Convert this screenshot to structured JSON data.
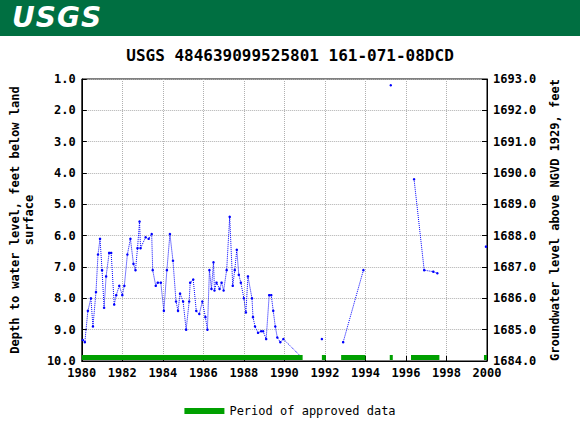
{
  "logo": "USGS",
  "chart_data": {
    "type": "line",
    "title": "USGS 484639099525801 161-071-08DCD",
    "y_label": "Depth to water level, feet below land\nsurface",
    "y2_label": "Groundwater level above NGVD 1929, feet",
    "x": [
      1980.05,
      1980.15,
      1980.3,
      1980.45,
      1980.55,
      1980.7,
      1980.8,
      1980.9,
      1981.0,
      1981.1,
      1981.2,
      1981.35,
      1981.45,
      1981.6,
      1981.7,
      1981.85,
      1982.0,
      1982.1,
      1982.25,
      1982.4,
      1982.55,
      1982.65,
      1982.75,
      1982.85,
      1982.9,
      1983.15,
      1983.3,
      1983.45,
      1983.5,
      1983.65,
      1983.75,
      1983.9,
      1984.05,
      1984.2,
      1984.35,
      1984.5,
      1984.65,
      1984.75,
      1984.85,
      1985.0,
      1985.15,
      1985.3,
      1985.35,
      1985.5,
      1985.65,
      1985.8,
      1985.95,
      1986.1,
      1986.2,
      1986.3,
      1986.4,
      1986.5,
      1986.55,
      1986.65,
      1986.8,
      1986.9,
      1987.0,
      1987.15,
      1987.3,
      1987.45,
      1987.55,
      1987.65,
      1987.75,
      1987.85,
      1988.0,
      1988.1,
      1988.2,
      1988.4,
      1988.45,
      1988.55,
      1988.7,
      1988.85,
      1988.95,
      1989.1,
      1989.25,
      1989.35,
      1989.45,
      1989.55,
      1989.65,
      1989.8,
      1989.95,
      1990.8,
      null,
      1991.85,
      null,
      1992.9,
      1993.9,
      null,
      1995.25,
      null,
      1996.4,
      1996.9,
      1997.35,
      1997.55,
      null,
      1999.95
    ],
    "values": [
      9.33,
      9.4,
      8.4,
      8.0,
      8.9,
      7.8,
      6.6,
      6.1,
      7.1,
      8.3,
      7.3,
      6.55,
      6.55,
      8.2,
      7.9,
      7.6,
      7.9,
      7.6,
      6.6,
      6.1,
      6.9,
      7.1,
      6.4,
      5.55,
      6.4,
      6.05,
      6.1,
      5.95,
      7.1,
      7.6,
      7.5,
      7.5,
      8.4,
      7.1,
      5.95,
      6.8,
      8.1,
      8.4,
      7.85,
      8.1,
      9.0,
      8.1,
      7.5,
      7.4,
      8.4,
      8.5,
      8.1,
      8.6,
      9.0,
      7.1,
      7.7,
      6.85,
      7.75,
      7.5,
      7.7,
      7.5,
      7.75,
      7.1,
      5.4,
      7.6,
      7.1,
      6.45,
      7.25,
      7.5,
      8.0,
      8.45,
      7.3,
      8.0,
      8.6,
      8.9,
      9.1,
      9.05,
      9.05,
      9.3,
      7.9,
      7.9,
      8.4,
      8.9,
      9.25,
      9.4,
      9.3,
      9.85,
      null,
      9.3,
      null,
      9.4,
      7.1,
      null,
      1.2,
      null,
      4.2,
      7.1,
      7.15,
      7.2,
      null,
      6.35
    ],
    "color": "#0000ff",
    "marker": "circle",
    "line_style": "dotted",
    "xlim": [
      1980,
      2000
    ],
    "xticks": [
      1980,
      1982,
      1984,
      1986,
      1988,
      1990,
      1992,
      1994,
      1996,
      1998,
      2000
    ],
    "ylim": [
      10,
      1
    ],
    "yticks": [
      {
        "value": 1,
        "label": "1.0"
      },
      {
        "value": 2,
        "label": "2.0"
      },
      {
        "value": 3,
        "label": "3.0"
      },
      {
        "value": 4,
        "label": "4.0"
      },
      {
        "value": 5,
        "label": "5.0"
      },
      {
        "value": 6,
        "label": "6.0"
      },
      {
        "value": 7,
        "label": "7.0"
      },
      {
        "value": 8,
        "label": "8.0"
      },
      {
        "value": 9,
        "label": "9.0"
      },
      {
        "value": 10,
        "label": "10.0"
      }
    ],
    "y2lim": [
      1684,
      1693
    ],
    "y2ticks": [
      {
        "value": 1684,
        "label": "1684.0"
      },
      {
        "value": 1685,
        "label": "1685.0"
      },
      {
        "value": 1686,
        "label": "1686.0"
      },
      {
        "value": 1687,
        "label": "1687.0"
      },
      {
        "value": 1688,
        "label": "1688.0"
      },
      {
        "value": 1689,
        "label": "1689.0"
      },
      {
        "value": 1690,
        "label": "1690.0"
      },
      {
        "value": 1691,
        "label": "1691.0"
      },
      {
        "value": 1692,
        "label": "1692.0"
      },
      {
        "value": 1693,
        "label": "1693.0"
      }
    ],
    "approved_periods": {
      "name": "Period of approved data",
      "color": "#00a000",
      "ranges": [
        [
          1980.0,
          1990.9
        ],
        [
          1991.85,
          1992.05
        ],
        [
          1992.8,
          1994.0
        ],
        [
          1995.2,
          1995.35
        ],
        [
          1996.25,
          1997.65
        ],
        [
          1999.85,
          2000.0
        ]
      ]
    },
    "grid": true,
    "legend": "bottom"
  }
}
